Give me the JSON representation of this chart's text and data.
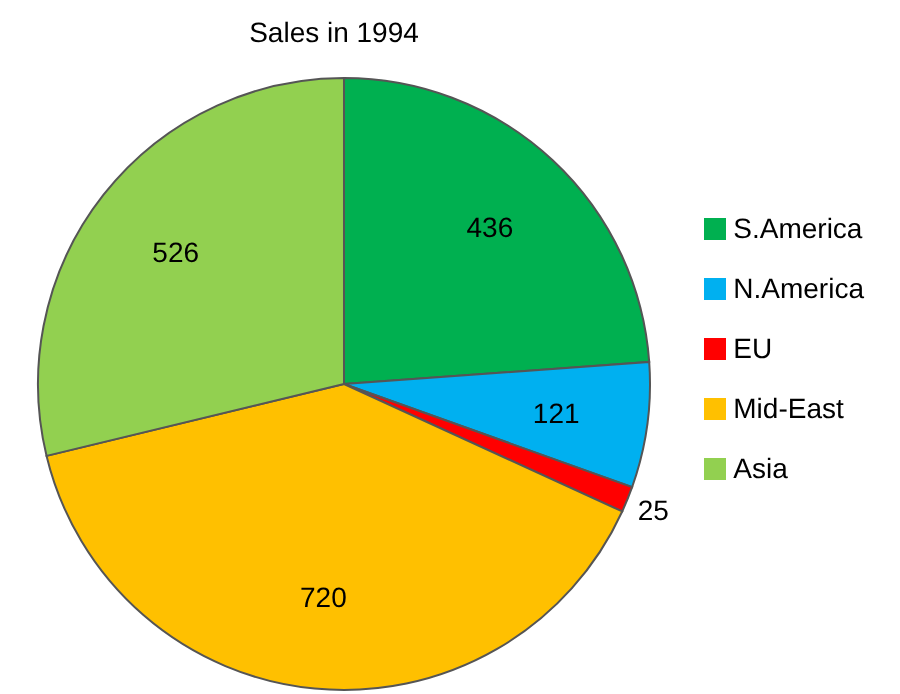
{
  "chart_data": {
    "type": "pie",
    "title": "Sales in 1994",
    "categories": [
      "S.America",
      "N.America",
      "EU",
      "Mid-East",
      "Asia"
    ],
    "values": [
      436,
      121,
      25,
      720,
      526
    ],
    "colors": [
      "#00b050",
      "#00b0f0",
      "#ff0000",
      "#ffc000",
      "#92d050"
    ],
    "data_labels": true,
    "legend": "right"
  }
}
